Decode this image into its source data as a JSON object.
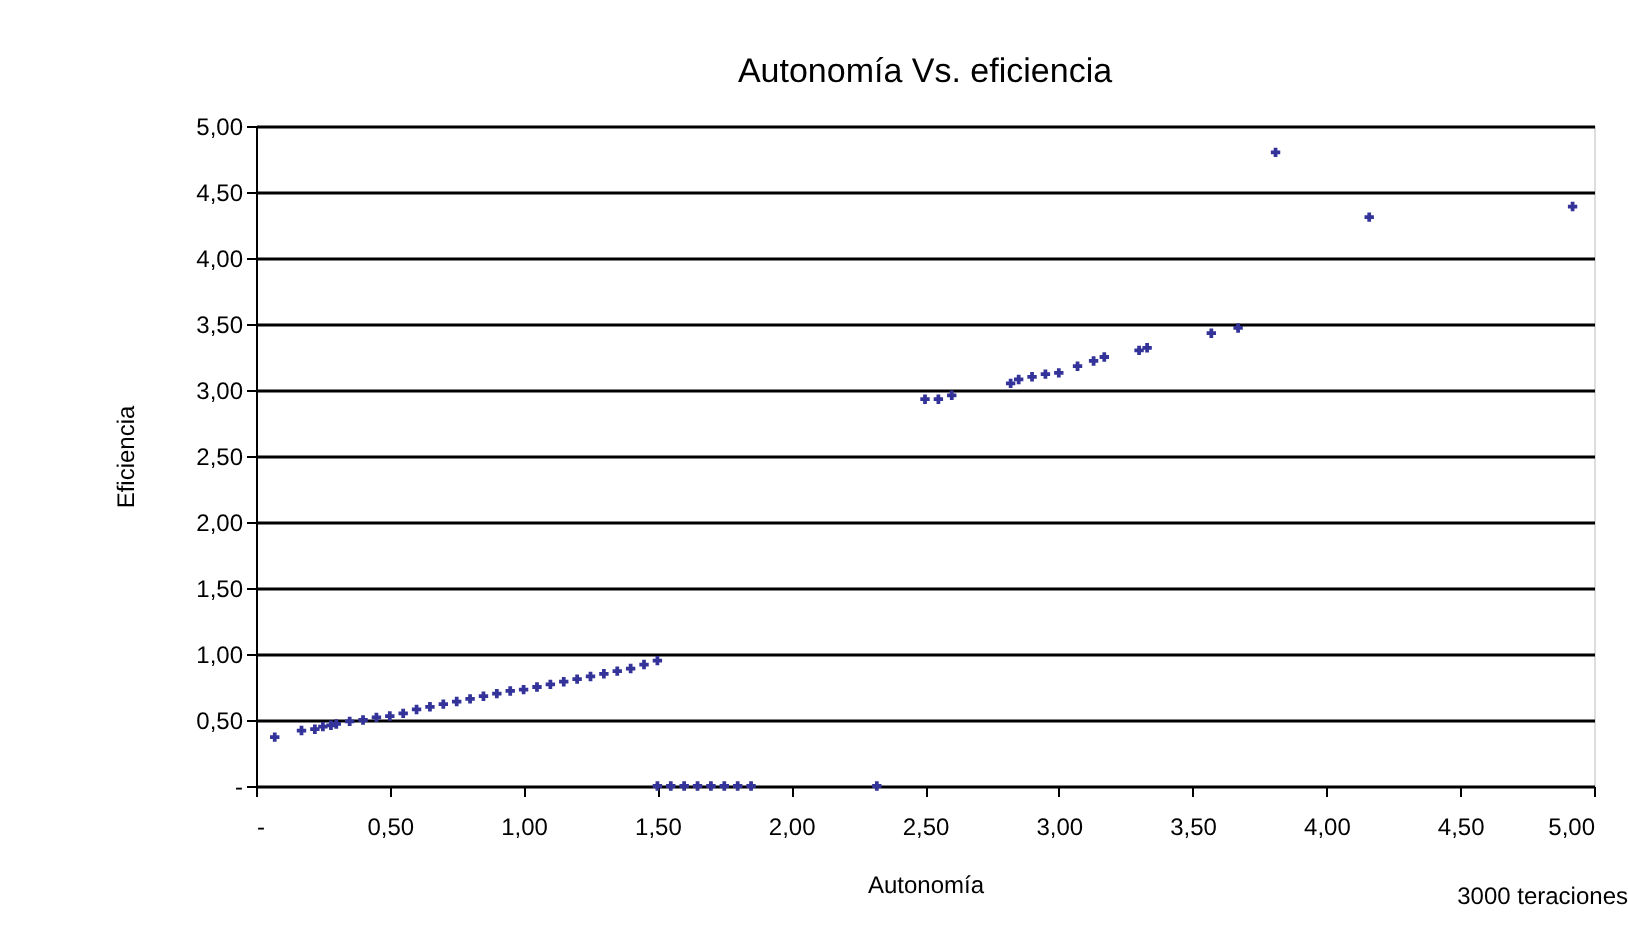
{
  "chart_data": {
    "type": "scatter",
    "title": "Autonomía Vs. eficiencia",
    "xlabel": "Autonomía",
    "ylabel": "Eficiencia",
    "annotations": [
      "3000 teraciones"
    ],
    "series": [
      {
        "color": "#333399",
        "x": [
          0.07,
          0.17,
          0.22,
          0.25,
          0.28,
          0.3,
          0.35,
          0.4,
          0.45,
          0.5,
          0.55,
          0.6,
          0.65,
          0.7,
          0.75,
          0.8,
          0.85,
          0.9,
          0.95,
          1.0,
          1.05,
          1.1,
          1.15,
          1.2,
          1.25,
          1.3,
          1.35,
          1.4,
          1.45,
          1.5,
          1.5,
          1.55,
          1.6,
          1.65,
          1.7,
          1.75,
          1.8,
          1.85,
          2.32,
          2.5,
          2.55,
          2.6,
          2.82,
          2.85,
          2.9,
          2.95,
          3.0,
          3.07,
          3.13,
          3.17,
          3.3,
          3.33,
          3.57,
          3.67,
          3.81,
          4.16,
          4.92
        ],
        "values": [
          0.37,
          0.42,
          0.43,
          0.45,
          0.46,
          0.47,
          0.49,
          0.5,
          0.52,
          0.53,
          0.55,
          0.58,
          0.6,
          0.62,
          0.64,
          0.66,
          0.68,
          0.7,
          0.72,
          0.73,
          0.75,
          0.77,
          0.79,
          0.81,
          0.83,
          0.85,
          0.87,
          0.89,
          0.92,
          0.95,
          0,
          0,
          0,
          0,
          0,
          0,
          0,
          0,
          0,
          2.93,
          2.93,
          2.96,
          3.05,
          3.08,
          3.1,
          3.12,
          3.13,
          3.18,
          3.22,
          3.25,
          3.3,
          3.32,
          3.43,
          3.47,
          4.8,
          4.31,
          4.39
        ]
      }
    ],
    "xlim": [
      0,
      5
    ],
    "ylim": [
      0,
      5
    ],
    "xticks": [
      {
        "value": 0,
        "label": "-"
      },
      {
        "value": 0.5,
        "label": "0,50"
      },
      {
        "value": 1,
        "label": "1,00"
      },
      {
        "value": 1.5,
        "label": "1,50"
      },
      {
        "value": 2,
        "label": "2,00"
      },
      {
        "value": 2.5,
        "label": "2,50"
      },
      {
        "value": 3,
        "label": "3,00"
      },
      {
        "value": 3.5,
        "label": "3,50"
      },
      {
        "value": 4,
        "label": "4,00"
      },
      {
        "value": 4.5,
        "label": "4,50"
      },
      {
        "value": 5,
        "label": "5,00"
      }
    ],
    "yticks": [
      {
        "value": 0,
        "label": "-"
      },
      {
        "value": 0.5,
        "label": "0,50"
      },
      {
        "value": 1,
        "label": "1,00"
      },
      {
        "value": 1.5,
        "label": "1,50"
      },
      {
        "value": 2,
        "label": "2,00"
      },
      {
        "value": 2.5,
        "label": "2,50"
      },
      {
        "value": 3,
        "label": "3,00"
      },
      {
        "value": 3.5,
        "label": "3,50"
      },
      {
        "value": 4,
        "label": "4,00"
      },
      {
        "value": 4.5,
        "label": "4,50"
      },
      {
        "value": 5,
        "label": "5,00"
      }
    ],
    "grid": "y",
    "marker": "cross",
    "legend": false
  }
}
